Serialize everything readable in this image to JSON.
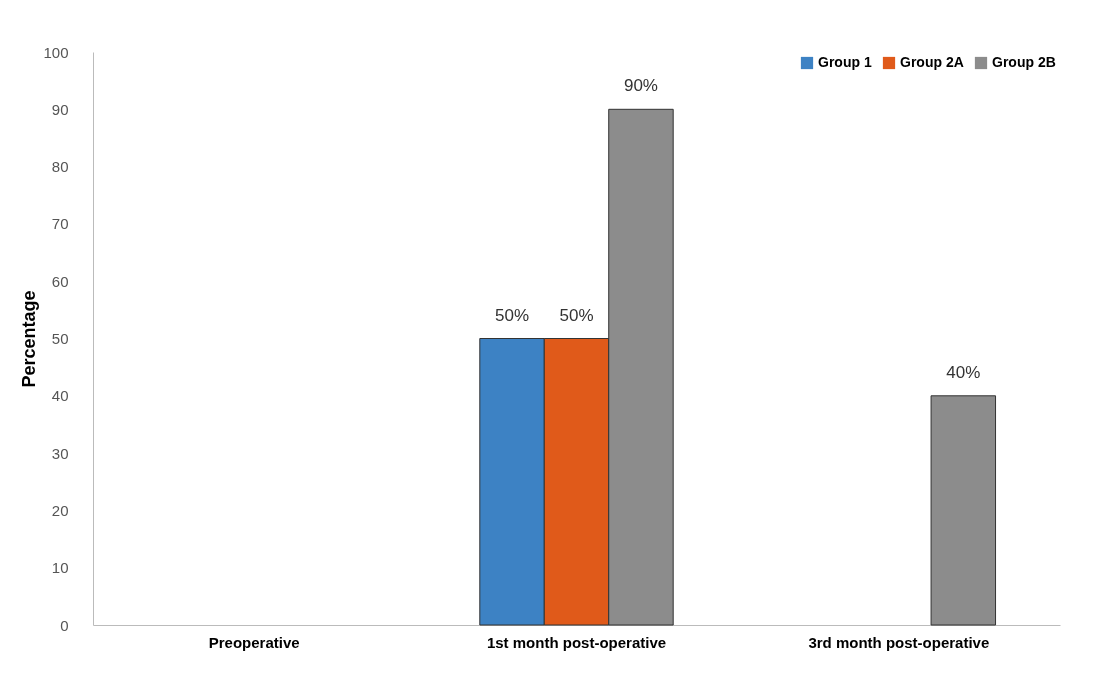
{
  "chart_data": {
    "type": "bar",
    "ylabel": "Percentage",
    "categories": [
      "Preoperative",
      "1st month post-operative",
      "3rd month post-operative"
    ],
    "series": [
      {
        "name": "Group 1",
        "color": "#3d82c4",
        "values": [
          0,
          50,
          0
        ],
        "value_labels": [
          null,
          "50%",
          null
        ]
      },
      {
        "name": "Group 2A",
        "color": "#e05a1a",
        "values": [
          0,
          50,
          0
        ],
        "value_labels": [
          null,
          "50%",
          null
        ]
      },
      {
        "name": "Group 2B",
        "color": "#8c8c8c",
        "values": [
          0,
          90,
          40
        ],
        "value_labels": [
          null,
          "90%",
          "40%"
        ]
      }
    ],
    "ylim": [
      0,
      100
    ],
    "yticks": [
      0,
      10,
      20,
      30,
      40,
      50,
      60,
      70,
      80,
      90,
      100
    ],
    "grid": false,
    "legend": "top right"
  }
}
